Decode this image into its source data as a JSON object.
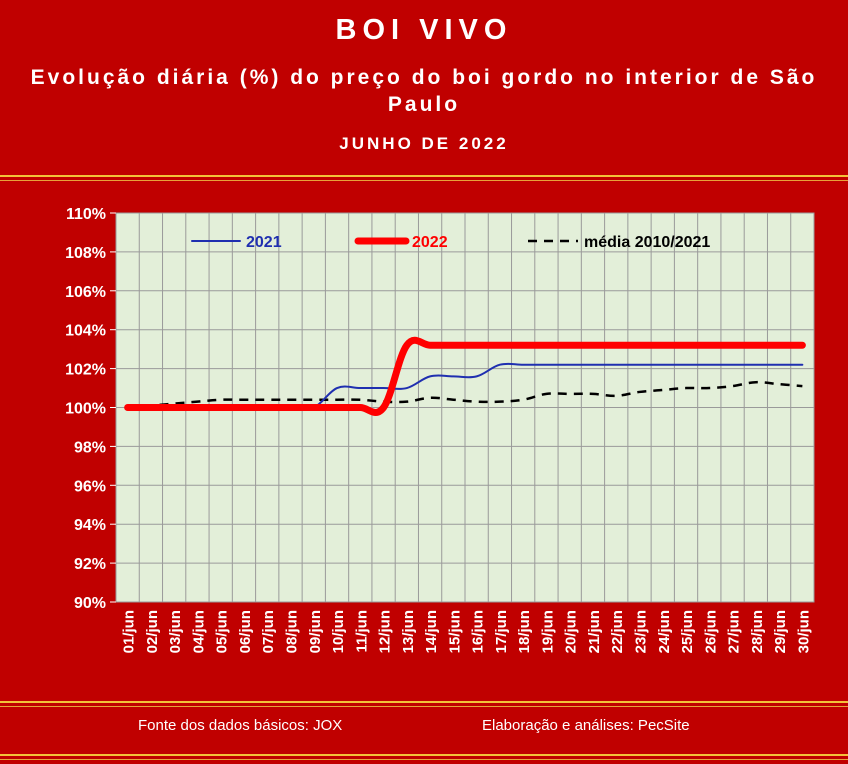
{
  "header": {
    "title": "BOI VIVO",
    "subtitle": "Evolução diária (%) do preço do boi gordo no interior de São Paulo",
    "period": "JUNHO DE 2022"
  },
  "footer": {
    "source": "Fonte dos dados básicos: JOX",
    "credit": "Elaboração e análises: PecSite"
  },
  "colors": {
    "background": "#c00000",
    "plot_area": "#e3efd9",
    "series_2021": "#1f2fb0",
    "series_2022": "#ff0000",
    "series_media": "#000000"
  },
  "chart_data": {
    "type": "line",
    "title": "",
    "xlabel": "",
    "ylabel": "",
    "ylim": [
      90,
      110
    ],
    "y_ticks": [
      90,
      92,
      94,
      96,
      98,
      100,
      102,
      104,
      106,
      108,
      110
    ],
    "y_tick_labels": [
      "90%",
      "92%",
      "94%",
      "96%",
      "98%",
      "100%",
      "102%",
      "104%",
      "106%",
      "108%",
      "110%"
    ],
    "categories": [
      "01/jun",
      "02/jun",
      "03/jun",
      "04/jun",
      "05/jun",
      "06/jun",
      "07/jun",
      "08/jun",
      "09/jun",
      "10/jun",
      "11/jun",
      "12/jun",
      "13/jun",
      "14/jun",
      "15/jun",
      "16/jun",
      "17/jun",
      "18/jun",
      "19/jun",
      "20/jun",
      "21/jun",
      "22/jun",
      "23/jun",
      "24/jun",
      "25/jun",
      "26/jun",
      "27/jun",
      "28/jun",
      "29/jun",
      "30/jun"
    ],
    "grid": true,
    "legend_position": "top",
    "series": [
      {
        "name": "2021",
        "color": "#1f2fb0",
        "style": "solid-thin",
        "values": [
          100.0,
          100.0,
          100.0,
          100.0,
          100.0,
          100.0,
          100.0,
          100.0,
          100.0,
          101.0,
          101.0,
          101.0,
          101.0,
          101.6,
          101.6,
          101.6,
          102.2,
          102.2,
          102.2,
          102.2,
          102.2,
          102.2,
          102.2,
          102.2,
          102.2,
          102.2,
          102.2,
          102.2,
          102.2,
          102.2
        ]
      },
      {
        "name": "2022",
        "color": "#ff0000",
        "style": "solid-thick",
        "values": [
          100.0,
          100.0,
          100.0,
          100.0,
          100.0,
          100.0,
          100.0,
          100.0,
          100.0,
          100.0,
          100.0,
          100.0,
          103.2,
          103.2,
          103.2,
          103.2,
          103.2,
          103.2,
          103.2,
          103.2,
          103.2,
          103.2,
          103.2,
          103.2,
          103.2,
          103.2,
          103.2,
          103.2,
          103.2,
          103.2
        ]
      },
      {
        "name": "média 2010/2021",
        "color": "#000000",
        "style": "dashed",
        "values": [
          100.0,
          100.1,
          100.2,
          100.3,
          100.4,
          100.4,
          100.4,
          100.4,
          100.4,
          100.4,
          100.4,
          100.3,
          100.3,
          100.5,
          100.4,
          100.3,
          100.3,
          100.4,
          100.7,
          100.7,
          100.7,
          100.6,
          100.8,
          100.9,
          101.0,
          101.0,
          101.1,
          101.3,
          101.2,
          101.1
        ]
      }
    ]
  }
}
